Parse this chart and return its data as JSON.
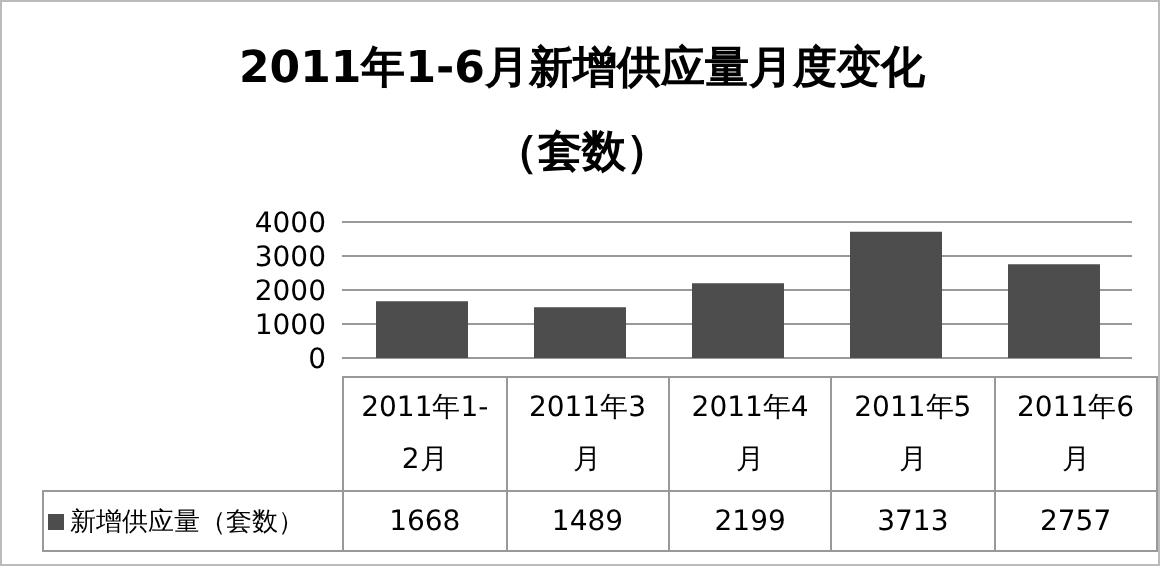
{
  "chart_data": {
    "type": "bar",
    "title": "2011年1-6月新增供应量月度变化",
    "subtitle": "（套数）",
    "categories": [
      "2011年1-2月",
      "2011年3月",
      "2011年4月",
      "2011年5月",
      "2011年6月"
    ],
    "series": [
      {
        "name": "新增供应量（套数）",
        "color": "#4d4d4d",
        "values": [
          1668,
          1489,
          2199,
          3713,
          2757
        ]
      }
    ],
    "ylim": [
      0,
      4000
    ],
    "yticks": [
      0,
      1000,
      2000,
      3000,
      4000
    ],
    "grid": "y",
    "legend": "bottom",
    "data_labels": true
  }
}
